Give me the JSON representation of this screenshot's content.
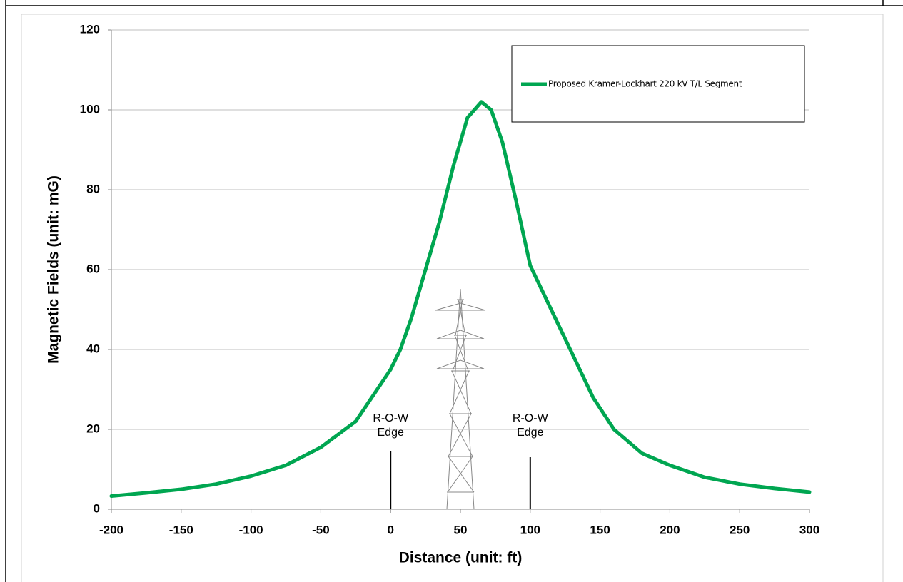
{
  "chart_data": {
    "type": "line",
    "xlabel": "Distance (unit: ft)",
    "ylabel": "Magnetic Fields (unit: mG)",
    "xlim": [
      -200,
      300
    ],
    "xticks": [
      -200,
      -150,
      -100,
      -50,
      0,
      50,
      100,
      150,
      200,
      250,
      300
    ],
    "ylim": [
      0,
      120
    ],
    "yticks": [
      0,
      20,
      40,
      60,
      80,
      100,
      120
    ],
    "grid": true,
    "legend_position": "upper right",
    "series": [
      {
        "name": "Proposed Kramer-Lockhart 220 kV T/L Segment",
        "color": "#00a651",
        "x": [
          -200,
          -175,
          -150,
          -125,
          -100,
          -75,
          -50,
          -25,
          0,
          7,
          15,
          25,
          35,
          45,
          55,
          65,
          72,
          80,
          90,
          100,
          115,
          130,
          145,
          160,
          180,
          200,
          225,
          250,
          275,
          300
        ],
        "values": [
          3.3,
          4.1,
          5,
          6.3,
          8.3,
          11,
          15.5,
          22,
          35,
          40,
          48,
          60,
          72,
          86,
          98,
          102,
          100,
          92,
          77,
          61,
          50,
          39,
          28,
          20,
          14,
          11,
          8,
          6.3,
          5.2,
          4.3
        ]
      }
    ],
    "annotations": [
      {
        "lines": [
          "R-O-W",
          "Edge"
        ],
        "x": 0
      },
      {
        "lines": [
          "R-O-W",
          "Edge"
        ],
        "x": 100
      }
    ]
  }
}
